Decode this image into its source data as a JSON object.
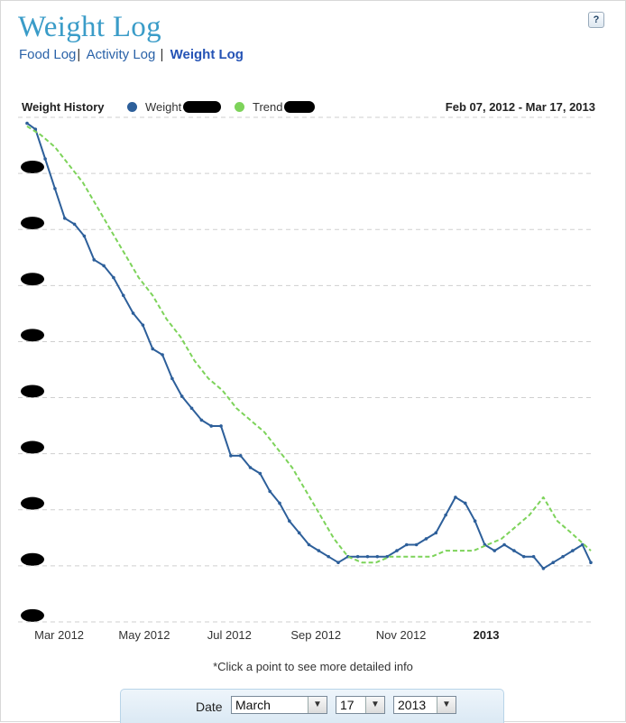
{
  "page": {
    "title": "Weight Log",
    "help_label": "?",
    "nav": [
      {
        "label": "Food Log",
        "active": false
      },
      {
        "label": "Activity Log",
        "active": false
      },
      {
        "label": "Weight Log",
        "active": true
      }
    ],
    "hint": "*Click a point to see more detailed info"
  },
  "legend": {
    "title": "Weight History",
    "date_range": "Feb 07, 2012 - Mar 17, 2013"
  },
  "date_picker": {
    "label": "Date",
    "month": "March",
    "day": "17",
    "year": "2013"
  },
  "colors": {
    "weight": "#2d5f9a",
    "trend": "#7dd35a",
    "grid": "#cfcfcf",
    "title": "#3a9cc8"
  },
  "chart_data": {
    "type": "line",
    "title": "Weight History",
    "series": [
      {
        "name": "Weight",
        "style": "solid",
        "x": [
          "2012-02-07",
          "2012-02-13",
          "2012-02-20",
          "2012-02-27",
          "2012-03-05",
          "2012-03-12",
          "2012-03-19",
          "2012-03-26",
          "2012-04-02",
          "2012-04-09",
          "2012-04-16",
          "2012-04-23",
          "2012-04-30",
          "2012-05-07",
          "2012-05-14",
          "2012-05-21",
          "2012-05-28",
          "2012-06-04",
          "2012-06-11",
          "2012-06-18",
          "2012-06-25",
          "2012-07-02",
          "2012-07-09",
          "2012-07-16",
          "2012-07-23",
          "2012-07-30",
          "2012-08-06",
          "2012-08-13",
          "2012-08-20",
          "2012-08-27",
          "2012-09-03",
          "2012-09-10",
          "2012-09-17",
          "2012-09-24",
          "2012-10-01",
          "2012-10-08",
          "2012-10-15",
          "2012-10-22",
          "2012-10-29",
          "2012-11-05",
          "2012-11-12",
          "2012-11-19",
          "2012-11-26",
          "2012-12-03",
          "2012-12-10",
          "2012-12-17",
          "2012-12-24",
          "2012-12-31",
          "2013-01-07",
          "2013-01-14",
          "2013-01-21",
          "2013-01-28",
          "2013-02-04",
          "2013-02-11",
          "2013-02-18",
          "2013-02-25",
          "2013-03-04",
          "2013-03-11",
          "2013-03-17"
        ],
        "values": [
          224,
          223,
          218,
          213,
          208,
          207,
          205,
          201,
          200,
          198,
          195,
          192,
          190,
          186,
          185,
          181,
          178,
          176,
          174,
          173,
          173,
          168,
          168,
          166,
          165,
          162,
          160,
          157,
          155,
          153,
          152,
          151,
          150,
          151,
          151,
          151,
          151,
          151,
          152,
          153,
          153,
          154,
          155,
          158,
          161,
          160,
          157,
          153,
          152,
          153,
          152,
          151,
          151,
          149,
          150,
          151,
          152,
          153,
          150
        ]
      },
      {
        "name": "Trend",
        "style": "dashed",
        "x": [
          "2012-02-07",
          "2012-02-17",
          "2012-02-27",
          "2012-03-08",
          "2012-03-18",
          "2012-03-28",
          "2012-04-07",
          "2012-04-17",
          "2012-04-27",
          "2012-05-07",
          "2012-05-17",
          "2012-05-27",
          "2012-06-06",
          "2012-06-16",
          "2012-06-26",
          "2012-07-06",
          "2012-07-16",
          "2012-07-26",
          "2012-08-05",
          "2012-08-15",
          "2012-08-25",
          "2012-09-04",
          "2012-09-14",
          "2012-09-24",
          "2012-10-04",
          "2012-10-14",
          "2012-10-24",
          "2012-11-03",
          "2012-11-13",
          "2012-11-23",
          "2012-12-03",
          "2012-12-13",
          "2012-12-23",
          "2013-01-02",
          "2013-01-12",
          "2013-01-22",
          "2013-02-01",
          "2013-02-11",
          "2013-02-21",
          "2013-03-03",
          "2013-03-17"
        ],
        "values": [
          223.5,
          222,
          220,
          217,
          214,
          210,
          206,
          202,
          198,
          195,
          191,
          188,
          184,
          181,
          179,
          176,
          174,
          172,
          169,
          166,
          162,
          158,
          154,
          151,
          150,
          150,
          151,
          151,
          151,
          151,
          152,
          152,
          152,
          153,
          154,
          156,
          158,
          161,
          157,
          155,
          152
        ]
      }
    ],
    "x_tick_labels": [
      "Mar 2012",
      "May 2012",
      "Jul 2012",
      "Sep 2012",
      "Nov 2012",
      "2013"
    ],
    "x_tick_dates": [
      "2012-03-01",
      "2012-05-01",
      "2012-07-01",
      "2012-09-01",
      "2012-11-01",
      "2013-01-01"
    ],
    "x_bold_ticks": [
      "2013"
    ],
    "xlim": [
      "2012-02-07",
      "2013-03-17"
    ],
    "ylim": [
      140,
      225
    ],
    "y_gridlines": 10,
    "y_tick_labels_visible": false,
    "grid": true,
    "grid_style": "dashed horizontal",
    "legend_position": "top"
  }
}
